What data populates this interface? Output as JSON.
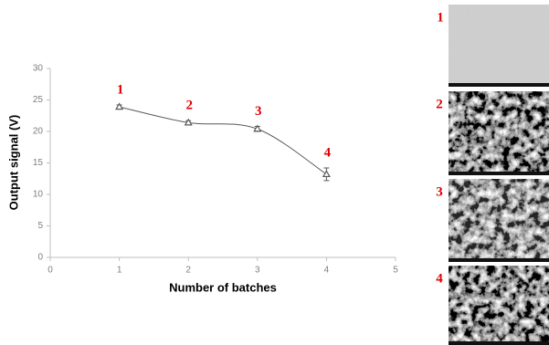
{
  "chart_data": {
    "type": "line",
    "x_label": "Number of batches",
    "y_label": "Output signal (V)",
    "x": [
      1,
      2,
      3,
      4
    ],
    "series": [
      {
        "color": "#595959",
        "values": [
          23.9,
          21.4,
          20.4,
          13.2
        ],
        "errors": [
          0.3,
          0.3,
          0.4,
          1.0
        ]
      }
    ],
    "annotations": [
      "1",
      "2",
      "3",
      "4"
    ],
    "xlim": [
      0,
      5
    ],
    "xticks": [
      0,
      1,
      2,
      3,
      4,
      5
    ],
    "ylim": [
      0,
      30
    ],
    "yticks": [
      0,
      5,
      10,
      15,
      20,
      25,
      30
    ],
    "axis_color": "#bfbfbf"
  },
  "panels": [
    {
      "label": "1"
    },
    {
      "label": "2"
    },
    {
      "label": "3"
    },
    {
      "label": "4"
    }
  ]
}
